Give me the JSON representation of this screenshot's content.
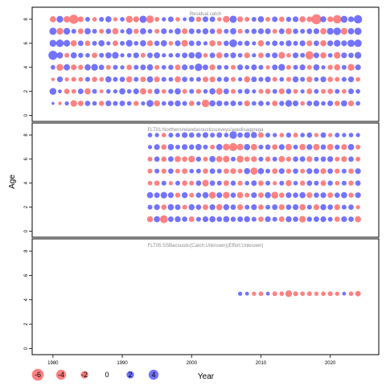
{
  "chart_data": {
    "type": "scatter",
    "subtype": "bubble-residual",
    "xlabel": "Year",
    "ylabel": "Age",
    "xlim": [
      1977,
      2027
    ],
    "x_ticks": [
      1980,
      1990,
      2000,
      2010,
      2020
    ],
    "colors": {
      "positive": "#5b5bff",
      "negative": "#ff6b6b"
    },
    "legend": {
      "placement": "bottom",
      "entries": [
        {
          "label": "-6",
          "value": -6
        },
        {
          "label": "-4",
          "value": -4
        },
        {
          "label": "-2",
          "value": -2
        },
        {
          "label": "0",
          "value": 0
        },
        {
          "label": "2",
          "value": 2
        },
        {
          "label": "4",
          "value": 4
        }
      ]
    },
    "panels": [
      {
        "title": "Residual catch",
        "ylim": [
          -0.5,
          9
        ],
        "y_ticks": [
          0,
          2,
          4,
          6,
          8
        ],
        "years": [
          1980,
          2024
        ],
        "ages": [
          1,
          2,
          3,
          4,
          5,
          6,
          7,
          8
        ],
        "residuals": {
          "8": [
            -1.2,
            1.5,
            -1.4,
            -3.2,
            -1.0,
            0.6,
            -0.5,
            0.6,
            1.2,
            -0.4,
            0.5,
            -1.6,
            -1.1,
            1.8,
            -2.0,
            -0.6,
            0.4,
            0.9,
            -0.5,
            0.3,
            1.0,
            -0.8,
            1.0,
            0.9,
            -0.4,
            -1.5,
            1.8,
            -1.0,
            -0.6,
            0.6,
            1.2,
            -0.6,
            0.9,
            -0.8,
            0.7,
            1.0,
            -1.2,
            -0.9,
            -4.0,
            1.1,
            -1.0,
            -2.6,
            1.6,
            1.0,
            2.6
          ],
          "7": [
            1.8,
            -1.5,
            1.5,
            0.6,
            -0.9,
            1.2,
            0.6,
            -0.6,
            0.8,
            -1.2,
            0.4,
            1.3,
            -0.7,
            1.2,
            0.5,
            -0.6,
            1.0,
            0.4,
            1.2,
            -1.0,
            0.9,
            0.6,
            1.1,
            0.8,
            -0.9,
            0.6,
            1.2,
            -0.6,
            0.5,
            0.8,
            1.0,
            1.0,
            -0.6,
            0.9,
            -1.2,
            0.8,
            0.6,
            0.9,
            1.0,
            -1.2,
            1.5,
            2.0,
            -1.5,
            1.2,
            1.8
          ],
          "6": [
            1.6,
            2.0,
            1.5,
            -1.2,
            0.9,
            -0.8,
            0.6,
            1.2,
            0.4,
            -0.9,
            0.6,
            1.5,
            0.5,
            1.2,
            -1.0,
            0.8,
            1.2,
            -0.5,
            1.0,
            -1.5,
            0.9,
            0.7,
            0.4,
            -1.2,
            -0.6,
            0.8,
            2.2,
            0.6,
            0.8,
            0.4,
            -1.2,
            0.5,
            0.9,
            0.6,
            1.1,
            0.6,
            1.0,
            -1.0,
            0.9,
            -1.2,
            1.0,
            1.5,
            1.0,
            1.8,
            2.0
          ],
          "5": [
            3.2,
            1.3,
            -0.6,
            1.2,
            0.7,
            0.5,
            -0.9,
            0.6,
            1.2,
            1.5,
            0.4,
            0.5,
            1.0,
            -0.6,
            0.9,
            1.2,
            0.4,
            0.5,
            0.6,
            0.9,
            1.2,
            1.5,
            -0.5,
            0.9,
            -1.2,
            0.6,
            1.0,
            0.5,
            -1.0,
            0.4,
            -0.9,
            0.6,
            1.0,
            -1.5,
            -0.5,
            1.0,
            0.6,
            -2.5,
            1.0,
            -1.2,
            0.5,
            -1.5,
            1.0,
            0.8,
            1.5
          ],
          "4": [
            0.5,
            -1.6,
            1.3,
            -1.0,
            -0.7,
            1.2,
            1.5,
            0.8,
            -0.6,
            0.6,
            0.4,
            -0.8,
            0.6,
            0.9,
            1.2,
            -0.6,
            0.5,
            0.7,
            -0.9,
            1.0,
            0.6,
            2.0,
            0.9,
            -1.0,
            0.6,
            0.5,
            -0.6,
            1.0,
            0.5,
            1.0,
            0.6,
            -0.4,
            0.9,
            1.5,
            -0.6,
            0.6,
            1.0,
            -0.6,
            1.2,
            0.4,
            -0.7,
            -1.2,
            0.6,
            -1.5,
            1.0
          ],
          "3": [
            -0.2,
            1.0,
            -0.4,
            -0.6,
            -0.5,
            0.6,
            -0.8,
            -0.5,
            1.2,
            0.6,
            0.8,
            -1.2,
            0.6,
            -0.9,
            1.2,
            -1.0,
            0.6,
            0.5,
            -1.2,
            0.8,
            0.5,
            0.6,
            -0.9,
            -1.0,
            0.6,
            0.8,
            -0.6,
            0.4,
            -1.2,
            0.9,
            0.6,
            1.0,
            -0.6,
            0.5,
            -0.6,
            1.1,
            0.6,
            -1.0,
            0.5,
            1.0,
            -0.8,
            -0.6,
            0.6,
            1.0,
            -0.5
          ],
          "2": [
            1.6,
            0.3,
            -0.8,
            -0.5,
            0.9,
            -1.2,
            0.6,
            -0.3,
            0.5,
            0.4,
            1.2,
            0.5,
            1.0,
            -1.3,
            -0.6,
            0.9,
            -0.5,
            0.7,
            1.2,
            -0.6,
            0.6,
            -0.7,
            0.5,
            1.2,
            -1.4,
            0.9,
            -0.6,
            0.5,
            0.8,
            0.4,
            -0.6,
            -0.8,
            0.6,
            -1.0,
            0.8,
            -0.6,
            0.4,
            -0.9,
            0.6,
            -0.6,
            -0.8,
            0.6,
            -0.5,
            0.9,
            0.5
          ],
          "1": [
            0.1,
            -0.2,
            0.4,
            -1.4,
            -0.9,
            0.8,
            0.5,
            -0.7,
            1.0,
            0.6,
            0.9,
            0.5,
            -0.7,
            0.4,
            1.6,
            -1.2,
            0.5,
            0.9,
            1.1,
            0.6,
            -0.8,
            0.4,
            -2.0,
            1.2,
            1.0,
            0.6,
            0.9,
            0.5,
            -1.0,
            0.5,
            0.8,
            0.4,
            -0.9,
            0.7,
            1.5,
            1.0,
            -0.5,
            0.8,
            1.1,
            0.5,
            0.9,
            -0.8,
            1.2,
            -1.0,
            0.5
          ]
        }
      },
      {
        "title": "FLT01:Northernirelandacousticsurveys/agedisaggrega",
        "ylim": [
          -0.5,
          9
        ],
        "y_ticks": [
          0,
          2,
          4,
          6,
          8
        ],
        "years": [
          1994,
          2024
        ],
        "ages": [
          1,
          2,
          3,
          4,
          5,
          6,
          7,
          8
        ],
        "residuals": {
          "8": [
            0.5,
            0.4,
            -0.5,
            0.6,
            0.5,
            1.0,
            0.8,
            0.6,
            1.0,
            0.6,
            0.9,
            0.5,
            2.0,
            0.8,
            1.1,
            1.2,
            -0.9,
            0.6,
            0.4,
            -0.5,
            0.7,
            -0.6,
            0.5,
            0.8,
            -0.4,
            0.9,
            -0.4,
            0.6,
            0.4,
            0.5,
            0.4
          ],
          "7": [
            0.4,
            1.0,
            -0.8,
            1.2,
            0.6,
            1.0,
            0.8,
            1.2,
            0.6,
            -0.6,
            1.2,
            -1.5,
            -2.4,
            -1.4,
            1.2,
            -1.3,
            0.6,
            0.8,
            -0.9,
            1.0,
            -1.3,
            0.6,
            -1.2,
            1.0,
            -1.3,
            0.8,
            -1.2,
            0.7,
            -1.0,
            1.2,
            -0.6
          ],
          "6": [
            -0.6,
            0.8,
            -0.8,
            0.9,
            -1.2,
            -0.8,
            -1.4,
            0.7,
            -0.6,
            1.2,
            -1.2,
            -1.4,
            0.6,
            -1.6,
            -0.8,
            -1.0,
            0.6,
            -0.8,
            0.6,
            -1.2,
            -0.7,
            0.8,
            0.9,
            -1.0,
            0.6,
            0.8,
            1.0,
            -0.6,
            -1.0,
            0.8,
            -0.6
          ],
          "5": [
            -0.6,
            0.6,
            -0.7,
            0.8,
            -0.6,
            -0.9,
            0.5,
            0.6,
            -0.8,
            0.9,
            0.6,
            -0.8,
            -1.0,
            -0.6,
            1.2,
            -1.8,
            1.2,
            0.6,
            -0.9,
            1.0,
            -0.7,
            0.8,
            -0.6,
            1.0,
            0.9,
            -1.0,
            0.8,
            -0.7,
            0.6,
            -0.8,
            1.0
          ],
          "4": [
            -0.5,
            -0.8,
            0.6,
            -0.4,
            0.6,
            -0.8,
            -0.6,
            0.8,
            -1.4,
            0.8,
            0.6,
            -0.9,
            0.7,
            -0.6,
            0.5,
            0.9,
            -0.8,
            0.6,
            -0.4,
            0.6,
            -1.1,
            0.5,
            -0.7,
            0.8,
            0.6,
            -0.9,
            0.7,
            -0.5,
            0.6,
            -0.7,
            0.8
          ],
          "3": [
            1.2,
            0.9,
            1.4,
            1.0,
            -0.7,
            1.1,
            -0.6,
            0.8,
            1.2,
            -1.6,
            1.0,
            -1.5,
            0.8,
            -1.2,
            -0.6,
            1.0,
            -0.9,
            1.2,
            -1.6,
            -0.8,
            1.0,
            0.8,
            1.2,
            -1.0,
            0.8,
            1.0,
            -0.9,
            0.8,
            1.2,
            -0.7,
            1.0
          ],
          "2": [
            0.6,
            1.0,
            -0.8,
            1.2,
            0.9,
            -0.6,
            1.1,
            0.8,
            -0.9,
            1.0,
            -1.2,
            1.1,
            0.8,
            -1.0,
            0.6,
            1.0,
            -0.8,
            0.6,
            0.9,
            -1.0,
            0.8,
            1.0,
            -1.2,
            0.6,
            -1.0,
            1.1,
            0.8,
            -1.0,
            0.6,
            0.8,
            -0.4
          ],
          "1": [
            -1.1,
            1.2,
            -2.2,
            0.9,
            1.1,
            0.8,
            -0.9,
            0.6,
            1.0,
            1.2,
            0.8,
            1.2,
            0.7,
            0.9,
            1.1,
            0.6,
            -0.8,
            1.0,
            0.6,
            -0.9,
            1.1,
            0.8,
            -1.4,
            0.7,
            0.9,
            1.0,
            0.6,
            -0.8,
            1.0,
            0.8,
            -1.2
          ]
        }
      },
      {
        "title": "FLT05:SSBacoustic(Catch:Unknown)(Effort:Unknown)",
        "ylim": [
          -0.5,
          9
        ],
        "y_ticks": [
          0,
          2,
          4,
          6,
          8
        ],
        "years": [
          2007,
          2024
        ],
        "ages": [
          4.5
        ],
        "residuals": {
          "4.5": [
            0.4,
            0.3,
            -0.4,
            -0.5,
            0.3,
            -0.6,
            -0.5,
            -1.5,
            -0.6,
            -0.5,
            -0.6,
            -0.4,
            -0.5,
            -0.6,
            -0.4,
            0.3,
            -0.5,
            -0.9
          ]
        }
      }
    ]
  }
}
